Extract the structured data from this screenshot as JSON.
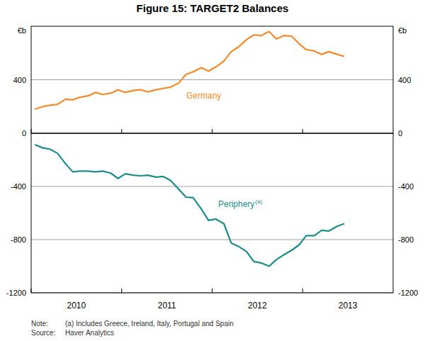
{
  "title": "Figure 15: TARGET2 Balances",
  "notes": [
    {
      "label": "Note:",
      "text": "(a) Includes Greece, Ireland, Italy, Portugal and Spain"
    },
    {
      "label": "Source:",
      "text": "Haver Analytics"
    }
  ],
  "chart_data": [
    {
      "type": "line",
      "y_label": "€b",
      "grid": true,
      "tick_labels": "y",
      "x": [
        2010.04,
        2010.13,
        2010.21,
        2010.29,
        2010.38,
        2010.46,
        2010.54,
        2010.63,
        2010.71,
        2010.79,
        2010.88,
        2010.96,
        2011.04,
        2011.13,
        2011.21,
        2011.29,
        2011.38,
        2011.46,
        2011.54,
        2011.63,
        2011.71,
        2011.79,
        2011.88,
        2011.96,
        2012.04,
        2012.13,
        2012.21,
        2012.29,
        2012.38,
        2012.46,
        2012.54,
        2012.63,
        2012.71,
        2012.79,
        2012.88,
        2012.96,
        2013.04,
        2013.13,
        2013.21,
        2013.29,
        2013.38,
        2013.46
      ],
      "xlim": [
        2010,
        2014
      ],
      "xticks": [
        {
          "value": 2010,
          "label": "2010"
        },
        {
          "value": 2011,
          "label": "2011"
        },
        {
          "value": 2012,
          "label": "2012"
        },
        {
          "value": 2013,
          "label": "2013"
        }
      ],
      "ylim": [
        0,
        800
      ],
      "yticks": [
        0,
        400
      ],
      "series": [
        {
          "name": "Germany",
          "color": "#f58a2a",
          "values": [
            180,
            200,
            210,
            215,
            255,
            250,
            270,
            280,
            305,
            290,
            300,
            325,
            305,
            320,
            325,
            310,
            325,
            335,
            345,
            375,
            440,
            460,
            490,
            465,
            495,
            540,
            610,
            645,
            700,
            735,
            730,
            760,
            705,
            730,
            725,
            670,
            625,
            615,
            590,
            610,
            590,
            575
          ]
        }
      ]
    },
    {
      "type": "line",
      "grid": true,
      "x": [
        2010.04,
        2010.13,
        2010.21,
        2010.29,
        2010.38,
        2010.46,
        2010.54,
        2010.63,
        2010.71,
        2010.79,
        2010.88,
        2010.96,
        2011.04,
        2011.13,
        2011.21,
        2011.29,
        2011.38,
        2011.46,
        2011.54,
        2011.63,
        2011.71,
        2011.79,
        2011.88,
        2011.96,
        2012.04,
        2012.13,
        2012.21,
        2012.29,
        2012.38,
        2012.46,
        2012.54,
        2012.63,
        2012.71,
        2012.79,
        2012.88,
        2012.96,
        2013.04,
        2013.13,
        2013.21,
        2013.29,
        2013.38,
        2013.46
      ],
      "xlim": [
        2010,
        2014
      ],
      "xticks": [
        {
          "value": 2010,
          "label": "2010"
        },
        {
          "value": 2011,
          "label": "2011"
        },
        {
          "value": 2012,
          "label": "2012"
        },
        {
          "value": 2013,
          "label": "2013"
        }
      ],
      "ylim": [
        -1200,
        0
      ],
      "yticks": [
        -1200,
        -800,
        -400
      ],
      "series": [
        {
          "name": "Periphery",
          "footnote": "(a)",
          "color": "#1c8c8c",
          "values": [
            -85,
            -110,
            -120,
            -150,
            -230,
            -290,
            -285,
            -285,
            -290,
            -285,
            -300,
            -340,
            -305,
            -315,
            -320,
            -315,
            -330,
            -325,
            -355,
            -420,
            -480,
            -485,
            -570,
            -655,
            -645,
            -680,
            -825,
            -850,
            -890,
            -965,
            -975,
            -1000,
            -950,
            -915,
            -880,
            -840,
            -770,
            -770,
            -730,
            -735,
            -700,
            -680
          ]
        }
      ]
    }
  ]
}
